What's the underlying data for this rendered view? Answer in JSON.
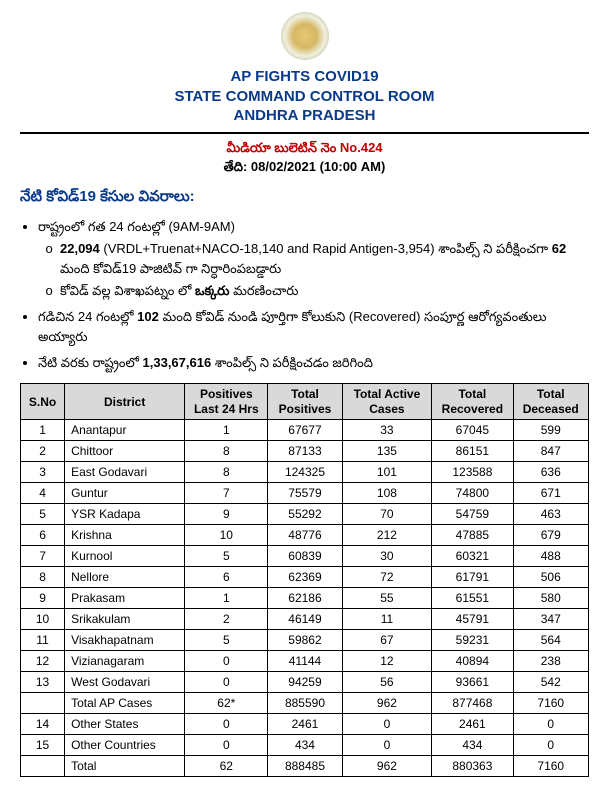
{
  "header": {
    "line1": "AP FIGHTS COVID19",
    "line2": "STATE COMMAND CONTROL ROOM",
    "line3": "ANDHRA PRADESH"
  },
  "bulletin": {
    "no_label": "మీడియా బులెటిన్ నెం No.424",
    "date_prefix": "తేది:",
    "date_value": "08/02/2021 (10:00 AM)"
  },
  "section_heading": "నేటి కోవిడ్19 కేసుల వివరాలు:",
  "bullets": {
    "b1": "రాష్ట్రంలో గత 24 గంటల్లో (9AM-9AM)",
    "b1s1_bold": "22,094",
    "b1s1_rest": " (VRDL+Truenat+NACO-18,140 and Rapid Antigen-3,954) శాంపిల్స్ ని పరీక్షించగా ",
    "b1s1_bold2": "62",
    "b1s1_tail": " మంది కోవిడ్19 పాజిటివ్ గా నిర్ధారింపబడ్డారు",
    "b1s2_a": "కోవిడ్ వల్ల విశాఖపట్నం లో ",
    "b1s2_bold": "ఒక్కరు",
    "b1s2_b": " మరణించారు",
    "b2_a": "గడిచిన 24 గంటల్లో ",
    "b2_bold": "102",
    "b2_b": " మంది కోవిడ్ నుండి పూర్తిగా కోలుకుని (Recovered) సంపూర్ణ ఆరోగ్యవంతులు అయ్యారు",
    "b3_a": "నేటి వరకు రాష్ట్రంలో ",
    "b3_bold": "1,33,67,616",
    "b3_b": " శాంపిల్స్ ని పరీక్షించడం జరిగింది"
  },
  "table": {
    "columns": [
      "S.No",
      "District",
      "Positives Last 24 Hrs",
      "Total Positives",
      "Total Active Cases",
      "Total Recovered",
      "Total Deceased"
    ],
    "rows": [
      [
        "1",
        "Anantapur",
        "1",
        "67677",
        "33",
        "67045",
        "599"
      ],
      [
        "2",
        "Chittoor",
        "8",
        "87133",
        "135",
        "86151",
        "847"
      ],
      [
        "3",
        "East Godavari",
        "8",
        "124325",
        "101",
        "123588",
        "636"
      ],
      [
        "4",
        "Guntur",
        "7",
        "75579",
        "108",
        "74800",
        "671"
      ],
      [
        "5",
        "YSR Kadapa",
        "9",
        "55292",
        "70",
        "54759",
        "463"
      ],
      [
        "6",
        "Krishna",
        "10",
        "48776",
        "212",
        "47885",
        "679"
      ],
      [
        "7",
        "Kurnool",
        "5",
        "60839",
        "30",
        "60321",
        "488"
      ],
      [
        "8",
        "Nellore",
        "6",
        "62369",
        "72",
        "61791",
        "506"
      ],
      [
        "9",
        "Prakasam",
        "1",
        "62186",
        "55",
        "61551",
        "580"
      ],
      [
        "10",
        "Srikakulam",
        "2",
        "46149",
        "11",
        "45791",
        "347"
      ],
      [
        "11",
        "Visakhapatnam",
        "5",
        "59862",
        "67",
        "59231",
        "564"
      ],
      [
        "12",
        "Vizianagaram",
        "0",
        "41144",
        "12",
        "40894",
        "238"
      ],
      [
        "13",
        "West Godavari",
        "0",
        "94259",
        "56",
        "93661",
        "542"
      ],
      [
        "",
        "Total AP Cases",
        "62*",
        "885590",
        "962",
        "877468",
        "7160"
      ],
      [
        "14",
        "Other States",
        "0",
        "2461",
        "0",
        "2461",
        "0"
      ],
      [
        "15",
        "Other Countries",
        "0",
        "434",
        "0",
        "434",
        "0"
      ],
      [
        "",
        "Total",
        "62",
        "888485",
        "962",
        "880363",
        "7160"
      ]
    ]
  }
}
